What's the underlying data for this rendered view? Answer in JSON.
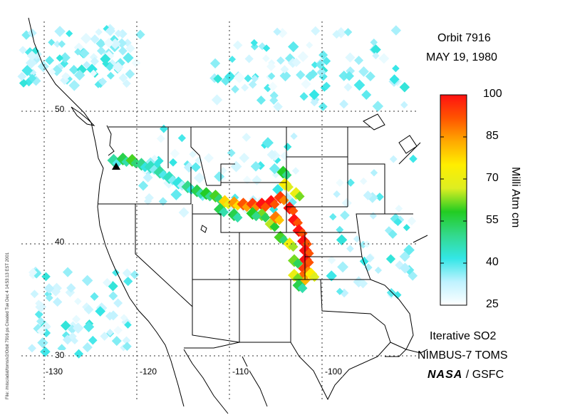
{
  "title": {
    "orbit": "Orbit 7916",
    "date": "MAY 19, 1980"
  },
  "colorbar": {
    "label": "Milli Atm cm",
    "ticks": [
      "100",
      "85",
      "70",
      "55",
      "40",
      "25"
    ],
    "min": 25,
    "max": 100,
    "stops": [
      "#ffffff",
      "#bff2ff",
      "#33e6e6",
      "#33d98c",
      "#22cc22",
      "#ddee22",
      "#ffee00",
      "#ffaa00",
      "#ff5500",
      "#ff1111"
    ]
  },
  "map": {
    "lat_labels": [
      "50",
      "40",
      "30"
    ],
    "lon_labels": [
      "-130",
      "-120",
      "-110",
      "-100"
    ],
    "volcano_marker": "triangle-icon"
  },
  "footer": {
    "line1": "Iterative SO2",
    "line2": "NIMBUS-7 TOMS",
    "agency": "NASA",
    "center": "/ GSFC"
  },
  "side_note": "File: /misc/adat/toms/v2/Orbit 7916 ps Created Tue Dec 4 14:53:13 EST 2001",
  "plume": [
    {
      "lon": -122.5,
      "lat": 46.3,
      "v": 48
    },
    {
      "lon": -121.5,
      "lat": 46.4,
      "v": 55
    },
    {
      "lon": -120.5,
      "lat": 46.3,
      "v": 60
    },
    {
      "lon": -119.5,
      "lat": 46.0,
      "v": 50
    },
    {
      "lon": -118.5,
      "lat": 45.8,
      "v": 45
    },
    {
      "lon": -117.5,
      "lat": 45.4,
      "v": 48
    },
    {
      "lon": -116.5,
      "lat": 45.0,
      "v": 45
    },
    {
      "lon": -115.5,
      "lat": 44.6,
      "v": 42
    },
    {
      "lon": -114.5,
      "lat": 44.3,
      "v": 50
    },
    {
      "lon": -113.5,
      "lat": 44.0,
      "v": 55
    },
    {
      "lon": -112.5,
      "lat": 43.8,
      "v": 58
    },
    {
      "lon": -111.5,
      "lat": 43.6,
      "v": 60
    },
    {
      "lon": -110.5,
      "lat": 43.2,
      "v": 78
    },
    {
      "lon": -109.5,
      "lat": 43.1,
      "v": 85
    },
    {
      "lon": -108.5,
      "lat": 43.0,
      "v": 92
    },
    {
      "lon": -107.5,
      "lat": 43.0,
      "v": 95
    },
    {
      "lon": -106.5,
      "lat": 43.0,
      "v": 100
    },
    {
      "lon": -105.5,
      "lat": 43.2,
      "v": 100
    },
    {
      "lon": -104.5,
      "lat": 43.5,
      "v": 95
    },
    {
      "lon": -104.0,
      "lat": 44.5,
      "v": 75
    },
    {
      "lon": -104.2,
      "lat": 45.4,
      "v": 58
    },
    {
      "lon": -103.5,
      "lat": 42.7,
      "v": 100
    },
    {
      "lon": -103.0,
      "lat": 41.8,
      "v": 100
    },
    {
      "lon": -102.5,
      "lat": 41.0,
      "v": 100
    },
    {
      "lon": -102.0,
      "lat": 40.2,
      "v": 100
    },
    {
      "lon": -101.8,
      "lat": 39.4,
      "v": 100
    },
    {
      "lon": -101.8,
      "lat": 38.6,
      "v": 100
    },
    {
      "lon": -101.9,
      "lat": 37.8,
      "v": 95
    },
    {
      "lon": -102.2,
      "lat": 37.0,
      "v": 90
    },
    {
      "lon": -103.0,
      "lat": 38.5,
      "v": 62
    },
    {
      "lon": -103.0,
      "lat": 37.2,
      "v": 70
    },
    {
      "lon": -101.2,
      "lat": 37.3,
      "v": 75
    },
    {
      "lon": -102.5,
      "lat": 36.3,
      "v": 55
    },
    {
      "lon": -104.5,
      "lat": 40.5,
      "v": 60
    },
    {
      "lon": -105.5,
      "lat": 41.5,
      "v": 65
    },
    {
      "lon": -106.5,
      "lat": 42.2,
      "v": 62
    },
    {
      "lon": -107.5,
      "lat": 42.3,
      "v": 58
    },
    {
      "lon": -109.5,
      "lat": 42.2,
      "v": 55
    },
    {
      "lon": -111.0,
      "lat": 42.6,
      "v": 55
    },
    {
      "lon": -102.8,
      "lat": 43.8,
      "v": 70
    },
    {
      "lon": -105.0,
      "lat": 42.0,
      "v": 88
    },
    {
      "lon": -103.5,
      "lat": 40.0,
      "v": 72
    }
  ]
}
